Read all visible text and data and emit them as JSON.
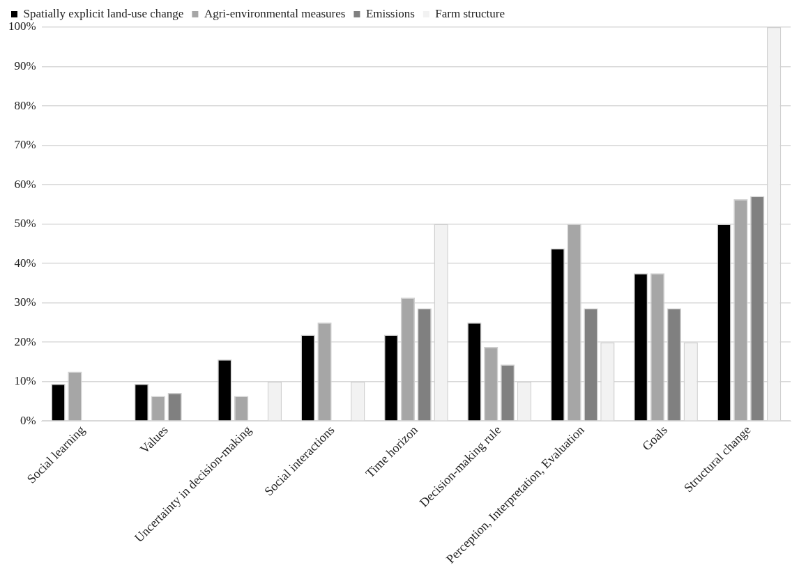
{
  "chart_data": {
    "type": "bar",
    "categories": [
      "Social learning",
      "Values",
      "Uncertainty in decision-making",
      "Social interactions",
      "Time horizon",
      "Decision-making rule",
      "Perception, Interpretation, Evaluation",
      "Goals",
      "Structural change"
    ],
    "series": [
      {
        "name": "Spatially explicit land-use change",
        "color": "#000000",
        "values": [
          9.4,
          9.4,
          15.6,
          21.9,
          21.9,
          25,
          43.8,
          37.5,
          50
        ]
      },
      {
        "name": "Agri-environmental measures",
        "color": "#a6a6a6",
        "values": [
          12.5,
          6.3,
          6.3,
          25,
          31.3,
          18.8,
          50,
          37.5,
          56.3
        ]
      },
      {
        "name": "Emissions",
        "color": "#808080",
        "values": [
          0,
          7.1,
          0,
          0,
          28.6,
          14.3,
          28.6,
          28.6,
          57.1
        ]
      },
      {
        "name": "Farm structure",
        "color": "#f2f2f2",
        "values": [
          0,
          0,
          10,
          10,
          50,
          10,
          20,
          20,
          100
        ]
      }
    ],
    "ylim": [
      0,
      100
    ],
    "yticks": [
      {
        "value": 0,
        "label": "0%"
      },
      {
        "value": 10,
        "label": "10%"
      },
      {
        "value": 20,
        "label": "20%"
      },
      {
        "value": 30,
        "label": "30%"
      },
      {
        "value": 40,
        "label": "40%"
      },
      {
        "value": 50,
        "label": "50%"
      },
      {
        "value": 60,
        "label": "60%"
      },
      {
        "value": 70,
        "label": "70%"
      },
      {
        "value": 80,
        "label": "80%"
      },
      {
        "value": 90,
        "label": "90%"
      },
      {
        "value": 100,
        "label": "100%"
      }
    ],
    "grid": "y",
    "legend": "top"
  }
}
